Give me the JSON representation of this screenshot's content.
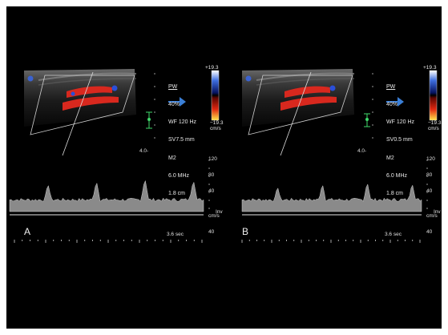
{
  "panels": [
    {
      "label": "A",
      "params": {
        "mode": "PW",
        "gain": "40%",
        "wall_filter": "WF 120 Hz",
        "sample_volume": "SV7.5 mm",
        "m": "M2",
        "freq": "6.0 MHz",
        "depth": "1.8 cm"
      },
      "color_bar": {
        "top": "+19.3",
        "bottom": "−19.3",
        "unit": "cm/s"
      },
      "depth_marker": "4.0-",
      "time_scale": "3.6 sec",
      "velocity_scale": [
        "120",
        "80",
        "40",
        "cm/s",
        "40"
      ],
      "inv_label": "Inv",
      "doppler_peaks_fraction": [
        0.35,
        0.4,
        0.45,
        0.42
      ]
    },
    {
      "label": "B",
      "params": {
        "mode": "PW",
        "gain": "40%",
        "wall_filter": "WF 120 Hz",
        "sample_volume": "SV0.5 mm",
        "m": "M2",
        "freq": "6.0 MHz",
        "depth": "1.8 cm"
      },
      "color_bar": {
        "top": "+19.3",
        "bottom": "−19.3",
        "unit": "cm/s"
      },
      "depth_marker": "4.0-",
      "time_scale": "3.6 sec",
      "velocity_scale": [
        "120",
        "80",
        "40",
        "cm/s",
        "40"
      ],
      "inv_label": "Inv",
      "doppler_peaks_fraction": [
        0.3,
        0.35,
        0.38,
        0.36
      ]
    }
  ],
  "colors": {
    "background": "#000000",
    "arrow": "#3b7fd6",
    "flow_red": "#d8281e",
    "flow_blue": "#2a4fd8",
    "marker_green": "#3fd86a"
  }
}
